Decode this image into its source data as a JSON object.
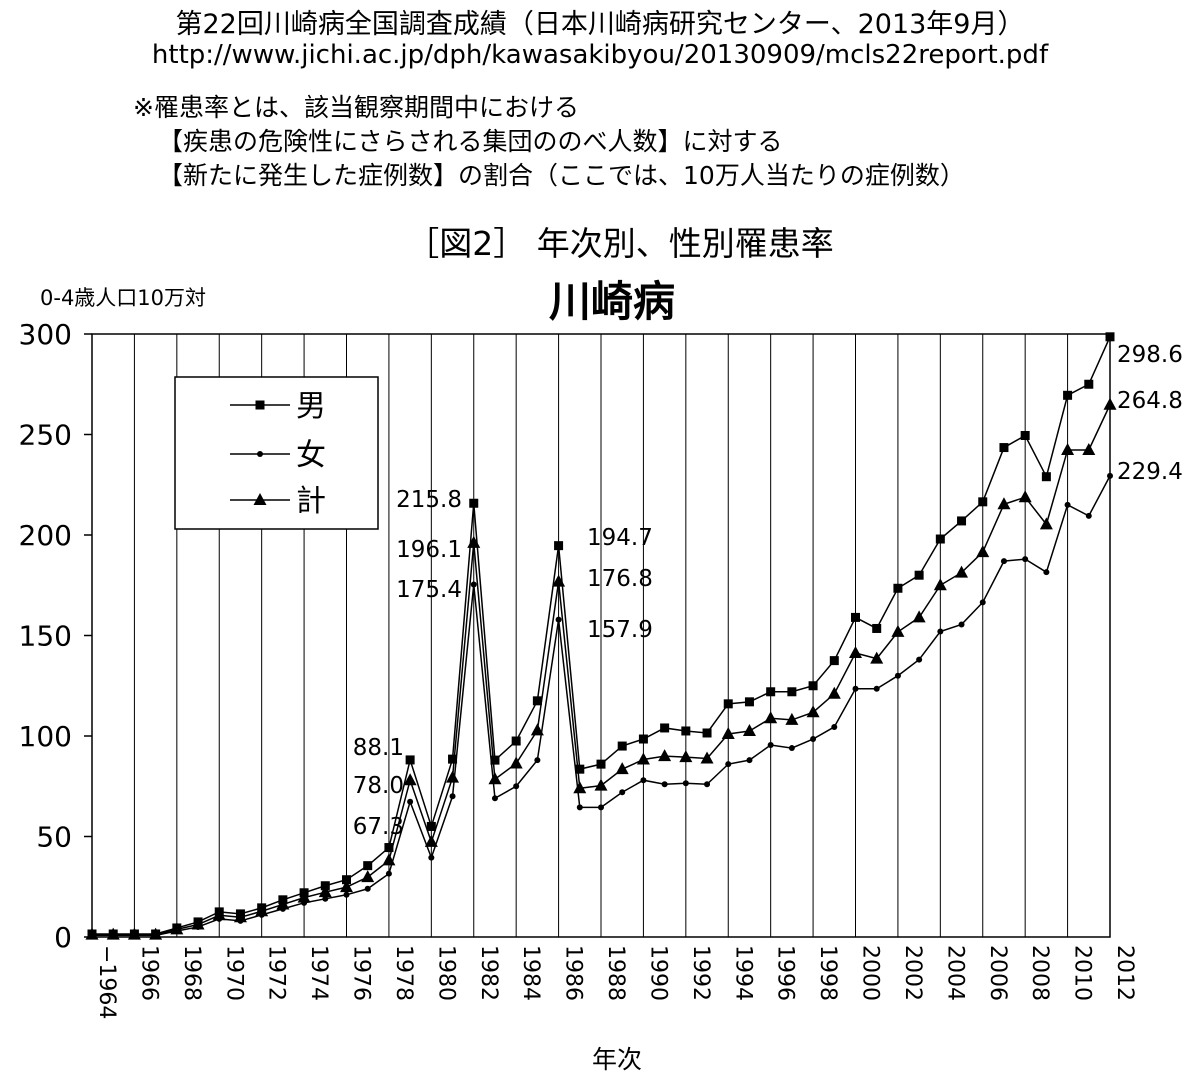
{
  "header": {
    "title": "第22回川崎病全国調査成績（日本川崎病研究センター、2013年9月）",
    "url": "http://www.jichi.ac.jp/dph/kawasakibyou/20130909/mcls22report.pdf",
    "note_lines": [
      "※罹患率とは、該当観察期間中における",
      "【疾患の危険性にさらされる集団ののべ人数】に対する",
      "【新たに発生した症例数】の割合（ここでは、10万人当たりの症例数）"
    ]
  },
  "chart_data": {
    "type": "line",
    "figure_label": "［図2］ 年次別、性別罹患率",
    "title": "川崎病",
    "ylabel": "0-4歳人口10万対",
    "xlabel": "年次",
    "ylim": [
      0,
      300
    ],
    "yticks": [
      0,
      50,
      100,
      150,
      200,
      250,
      300
    ],
    "xlim": [
      1964,
      2012
    ],
    "xticks": [
      "1964",
      "1966",
      "1968",
      "1970",
      "1972",
      "1974",
      "1976",
      "1978",
      "1980",
      "1982",
      "1984",
      "1986",
      "1988",
      "1990",
      "1992",
      "1994",
      "1996",
      "1998",
      "2000",
      "2002",
      "2004",
      "2006",
      "2008",
      "2010",
      "2012"
    ],
    "first_tick_prefix": "−",
    "grid": "vertical",
    "legend_position": "top-left",
    "x": [
      1964,
      1965,
      1966,
      1967,
      1968,
      1969,
      1970,
      1971,
      1972,
      1973,
      1974,
      1975,
      1976,
      1977,
      1978,
      1979,
      1980,
      1981,
      1982,
      1983,
      1984,
      1985,
      1986,
      1987,
      1988,
      1989,
      1990,
      1991,
      1992,
      1993,
      1994,
      1995,
      1996,
      1997,
      1998,
      1999,
      2000,
      2001,
      2002,
      2003,
      2004,
      2005,
      2006,
      2007,
      2008,
      2009,
      2010,
      2011,
      2012
    ],
    "series": [
      {
        "name": "男",
        "marker": "square",
        "values": [
          1.5,
          1.5,
          1.5,
          1.5,
          4.5,
          7.5,
          12.5,
          11.5,
          14.5,
          18.5,
          22,
          25.5,
          28.5,
          35.5,
          44.5,
          88.1,
          55,
          88.5,
          215.8,
          88,
          97.5,
          117.5,
          194.7,
          83.5,
          86,
          95,
          98.5,
          104,
          102.5,
          101.5,
          116,
          117,
          122,
          122,
          125,
          137.5,
          159,
          153.5,
          173.5,
          180,
          198,
          207,
          216.5,
          243.5,
          249.5,
          229,
          269.5,
          275,
          298.6
        ]
      },
      {
        "name": "女",
        "marker": "dot",
        "values": [
          0.8,
          0.8,
          0.8,
          0.8,
          3,
          5,
          9,
          8,
          11,
          14,
          17,
          19,
          21,
          24,
          31.5,
          67.3,
          39.5,
          70,
          175.4,
          69,
          75,
          88,
          157.9,
          64.5,
          64.5,
          72,
          78,
          76,
          76.5,
          76,
          86,
          88,
          95.5,
          94,
          98.5,
          104.5,
          123.5,
          123.5,
          130,
          138,
          152,
          155.5,
          166.5,
          187,
          188,
          181.5,
          215,
          209.5,
          229.4
        ]
      },
      {
        "name": "計",
        "marker": "triangle",
        "values": [
          1.2,
          1.2,
          1.2,
          1.2,
          3.8,
          6.2,
          10.8,
          9.8,
          12.8,
          16.2,
          19.6,
          22.3,
          24.8,
          29.8,
          38.1,
          78.0,
          47.3,
          79.3,
          196.1,
          78.5,
          86.3,
          102.8,
          176.8,
          74,
          75.3,
          83.5,
          88.3,
          90,
          89.5,
          88.8,
          101,
          102.5,
          108.8,
          108,
          111.8,
          121,
          141.3,
          138.5,
          151.8,
          159,
          175,
          181.3,
          191.5,
          215.3,
          218.8,
          205.3,
          242.3,
          242.3,
          264.8
        ]
      }
    ],
    "annotations": [
      {
        "year": 1979,
        "labels": [
          "88.1",
          "78.0",
          "67.3"
        ]
      },
      {
        "year": 1982,
        "labels": [
          "215.8",
          "196.1",
          "175.4"
        ]
      },
      {
        "year": 1986,
        "labels": [
          "194.7",
          "176.8",
          "157.9"
        ]
      },
      {
        "year": 2012,
        "labels": [
          "298.6",
          "264.8",
          "229.4"
        ]
      }
    ]
  }
}
